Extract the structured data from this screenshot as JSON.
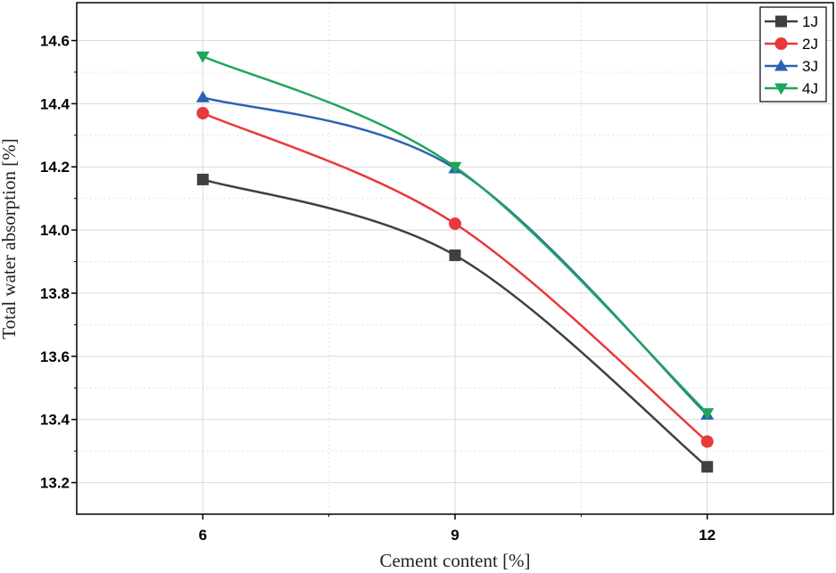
{
  "chart_data": {
    "type": "line",
    "title": "",
    "xlabel": "Cement content [%]",
    "ylabel": "Total water absorption [%]",
    "x": [
      6,
      9,
      12
    ],
    "x_tick_labels": [
      "6",
      "9",
      "12"
    ],
    "xlim": [
      4.5,
      13.5
    ],
    "ylim": [
      13.1,
      14.72
    ],
    "y_ticks": [
      13.2,
      13.4,
      13.6,
      13.8,
      14.0,
      14.2,
      14.4,
      14.6
    ],
    "y_tick_labels": [
      "13.2",
      "13.4",
      "13.6",
      "13.8",
      "14.0",
      "14.2",
      "14.4",
      "14.6"
    ],
    "grid": true,
    "legend_position": "top-right",
    "series": [
      {
        "name": "1J",
        "values": [
          14.16,
          13.92,
          13.25
        ],
        "color": "#404040",
        "marker": "square"
      },
      {
        "name": "2J",
        "values": [
          14.37,
          14.02,
          13.33
        ],
        "color": "#e8393c",
        "marker": "circle"
      },
      {
        "name": "3J",
        "values": [
          14.42,
          14.195,
          13.415
        ],
        "color": "#2b62b4",
        "marker": "triangle-up"
      },
      {
        "name": "4J",
        "values": [
          14.55,
          14.2,
          13.42
        ],
        "color": "#1fa55a",
        "marker": "triangle-down"
      }
    ]
  }
}
